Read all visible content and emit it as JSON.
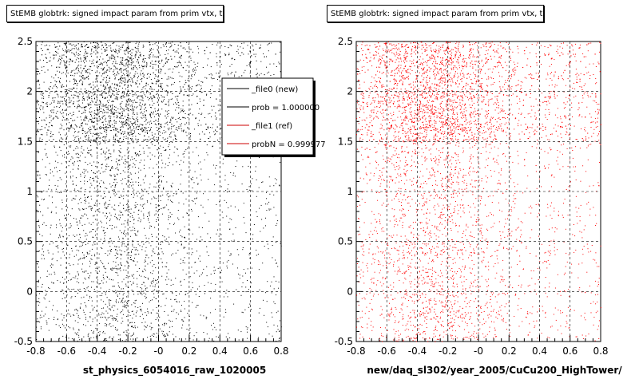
{
  "chart_data": [
    {
      "type": "scatter",
      "title": "StEMB globtrk: signed impact param from prim vtx, tpc",
      "xlabel": "st_physics_6054016_raw_1020005",
      "ylabel": "",
      "xlim": [
        -0.8,
        0.8
      ],
      "ylim": [
        -0.5,
        2.5
      ],
      "xticks": [
        "-0.8",
        "-0.6",
        "-0.4",
        "-0.2",
        "-0",
        "0.2",
        "0.4",
        "0.6",
        "0.8"
      ],
      "yticks": [
        "-0.5",
        "0",
        "0.5",
        "1",
        "1.5",
        "2",
        "2.5"
      ],
      "grid": true,
      "series": [
        {
          "name": "_file0 (new)",
          "color": "#000000",
          "density_bands": [
            {
              "y_range": [
                -0.5,
                1.5
              ],
              "relative_density": 0.35
            },
            {
              "y_range": [
                1.5,
                2.5
              ],
              "relative_density": 1.0
            }
          ]
        }
      ],
      "legend": {
        "placement": "top-right",
        "entries": [
          {
            "label": "_file0 (new)",
            "color": "#000000"
          },
          {
            "label": "prob = 1.000000",
            "color": "#000000"
          },
          {
            "label": "_file1 (ref)",
            "color": "#cc0000"
          },
          {
            "label": "probN = 0.999977",
            "color": "#cc0000"
          }
        ]
      }
    },
    {
      "type": "scatter",
      "title": "StEMB globtrk: signed impact param from prim vtx, tpc",
      "xlabel": "new/daq_sl302/year_2005/CuCu200_HighTower/",
      "ylabel": "",
      "xlim": [
        -0.8,
        0.8
      ],
      "ylim": [
        -0.5,
        2.5
      ],
      "xticks": [
        "-0.8",
        "-0.6",
        "-0.4",
        "-0.2",
        "-0",
        "0.2",
        "0.4",
        "0.6",
        "0.8"
      ],
      "yticks": [
        "-0.5",
        "0",
        "0.5",
        "1",
        "1.5",
        "2",
        "2.5"
      ],
      "grid": true,
      "series": [
        {
          "name": "_file1 (ref)",
          "color": "#ff0000",
          "density_bands": [
            {
              "y_range": [
                -0.5,
                1.5
              ],
              "relative_density": 0.35
            },
            {
              "y_range": [
                1.5,
                2.5
              ],
              "relative_density": 1.0
            }
          ]
        }
      ]
    }
  ]
}
